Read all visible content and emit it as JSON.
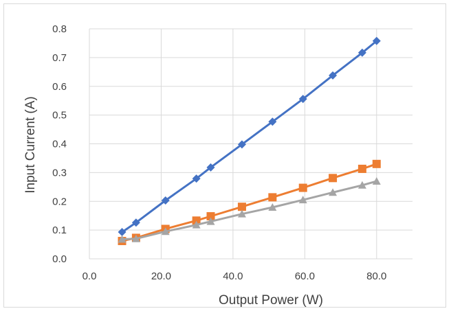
{
  "chart_data": {
    "type": "line",
    "xlabel": "Output Power (W)",
    "ylabel": "Input Current (A)",
    "xlim": [
      0,
      90
    ],
    "ylim": [
      0,
      0.8
    ],
    "x_ticks": [
      "0.0",
      "20.0",
      "40.0",
      "60.0",
      "80.0"
    ],
    "y_ticks": [
      "0.0",
      "0.1",
      "0.2",
      "0.3",
      "0.4",
      "0.5",
      "0.6",
      "0.7",
      "0.8"
    ],
    "grid": true,
    "legend": "none",
    "series": [
      {
        "color": "#4472c4",
        "marker": "diamond",
        "x": [
          9.1,
          13,
          21.2,
          29.8,
          33.8,
          42.5,
          51,
          59.5,
          67.8,
          76,
          80
        ],
        "y": [
          0.093,
          0.126,
          0.203,
          0.279,
          0.318,
          0.398,
          0.477,
          0.556,
          0.638,
          0.717,
          0.758
        ]
      },
      {
        "color": "#ed7d31",
        "marker": "square",
        "x": [
          9.1,
          13,
          21.2,
          29.8,
          33.8,
          42.5,
          51,
          59.5,
          67.8,
          76,
          80
        ],
        "y": [
          0.062,
          0.073,
          0.104,
          0.133,
          0.148,
          0.181,
          0.214,
          0.247,
          0.281,
          0.313,
          0.33
        ]
      },
      {
        "color": "#a5a5a5",
        "marker": "triangle",
        "x": [
          9.1,
          13,
          21.2,
          29.8,
          33.8,
          42.5,
          51,
          59.5,
          67.8,
          76,
          80
        ],
        "y": [
          0.068,
          0.07,
          0.095,
          0.118,
          0.13,
          0.156,
          0.179,
          0.205,
          0.231,
          0.256,
          0.27
        ]
      }
    ]
  }
}
